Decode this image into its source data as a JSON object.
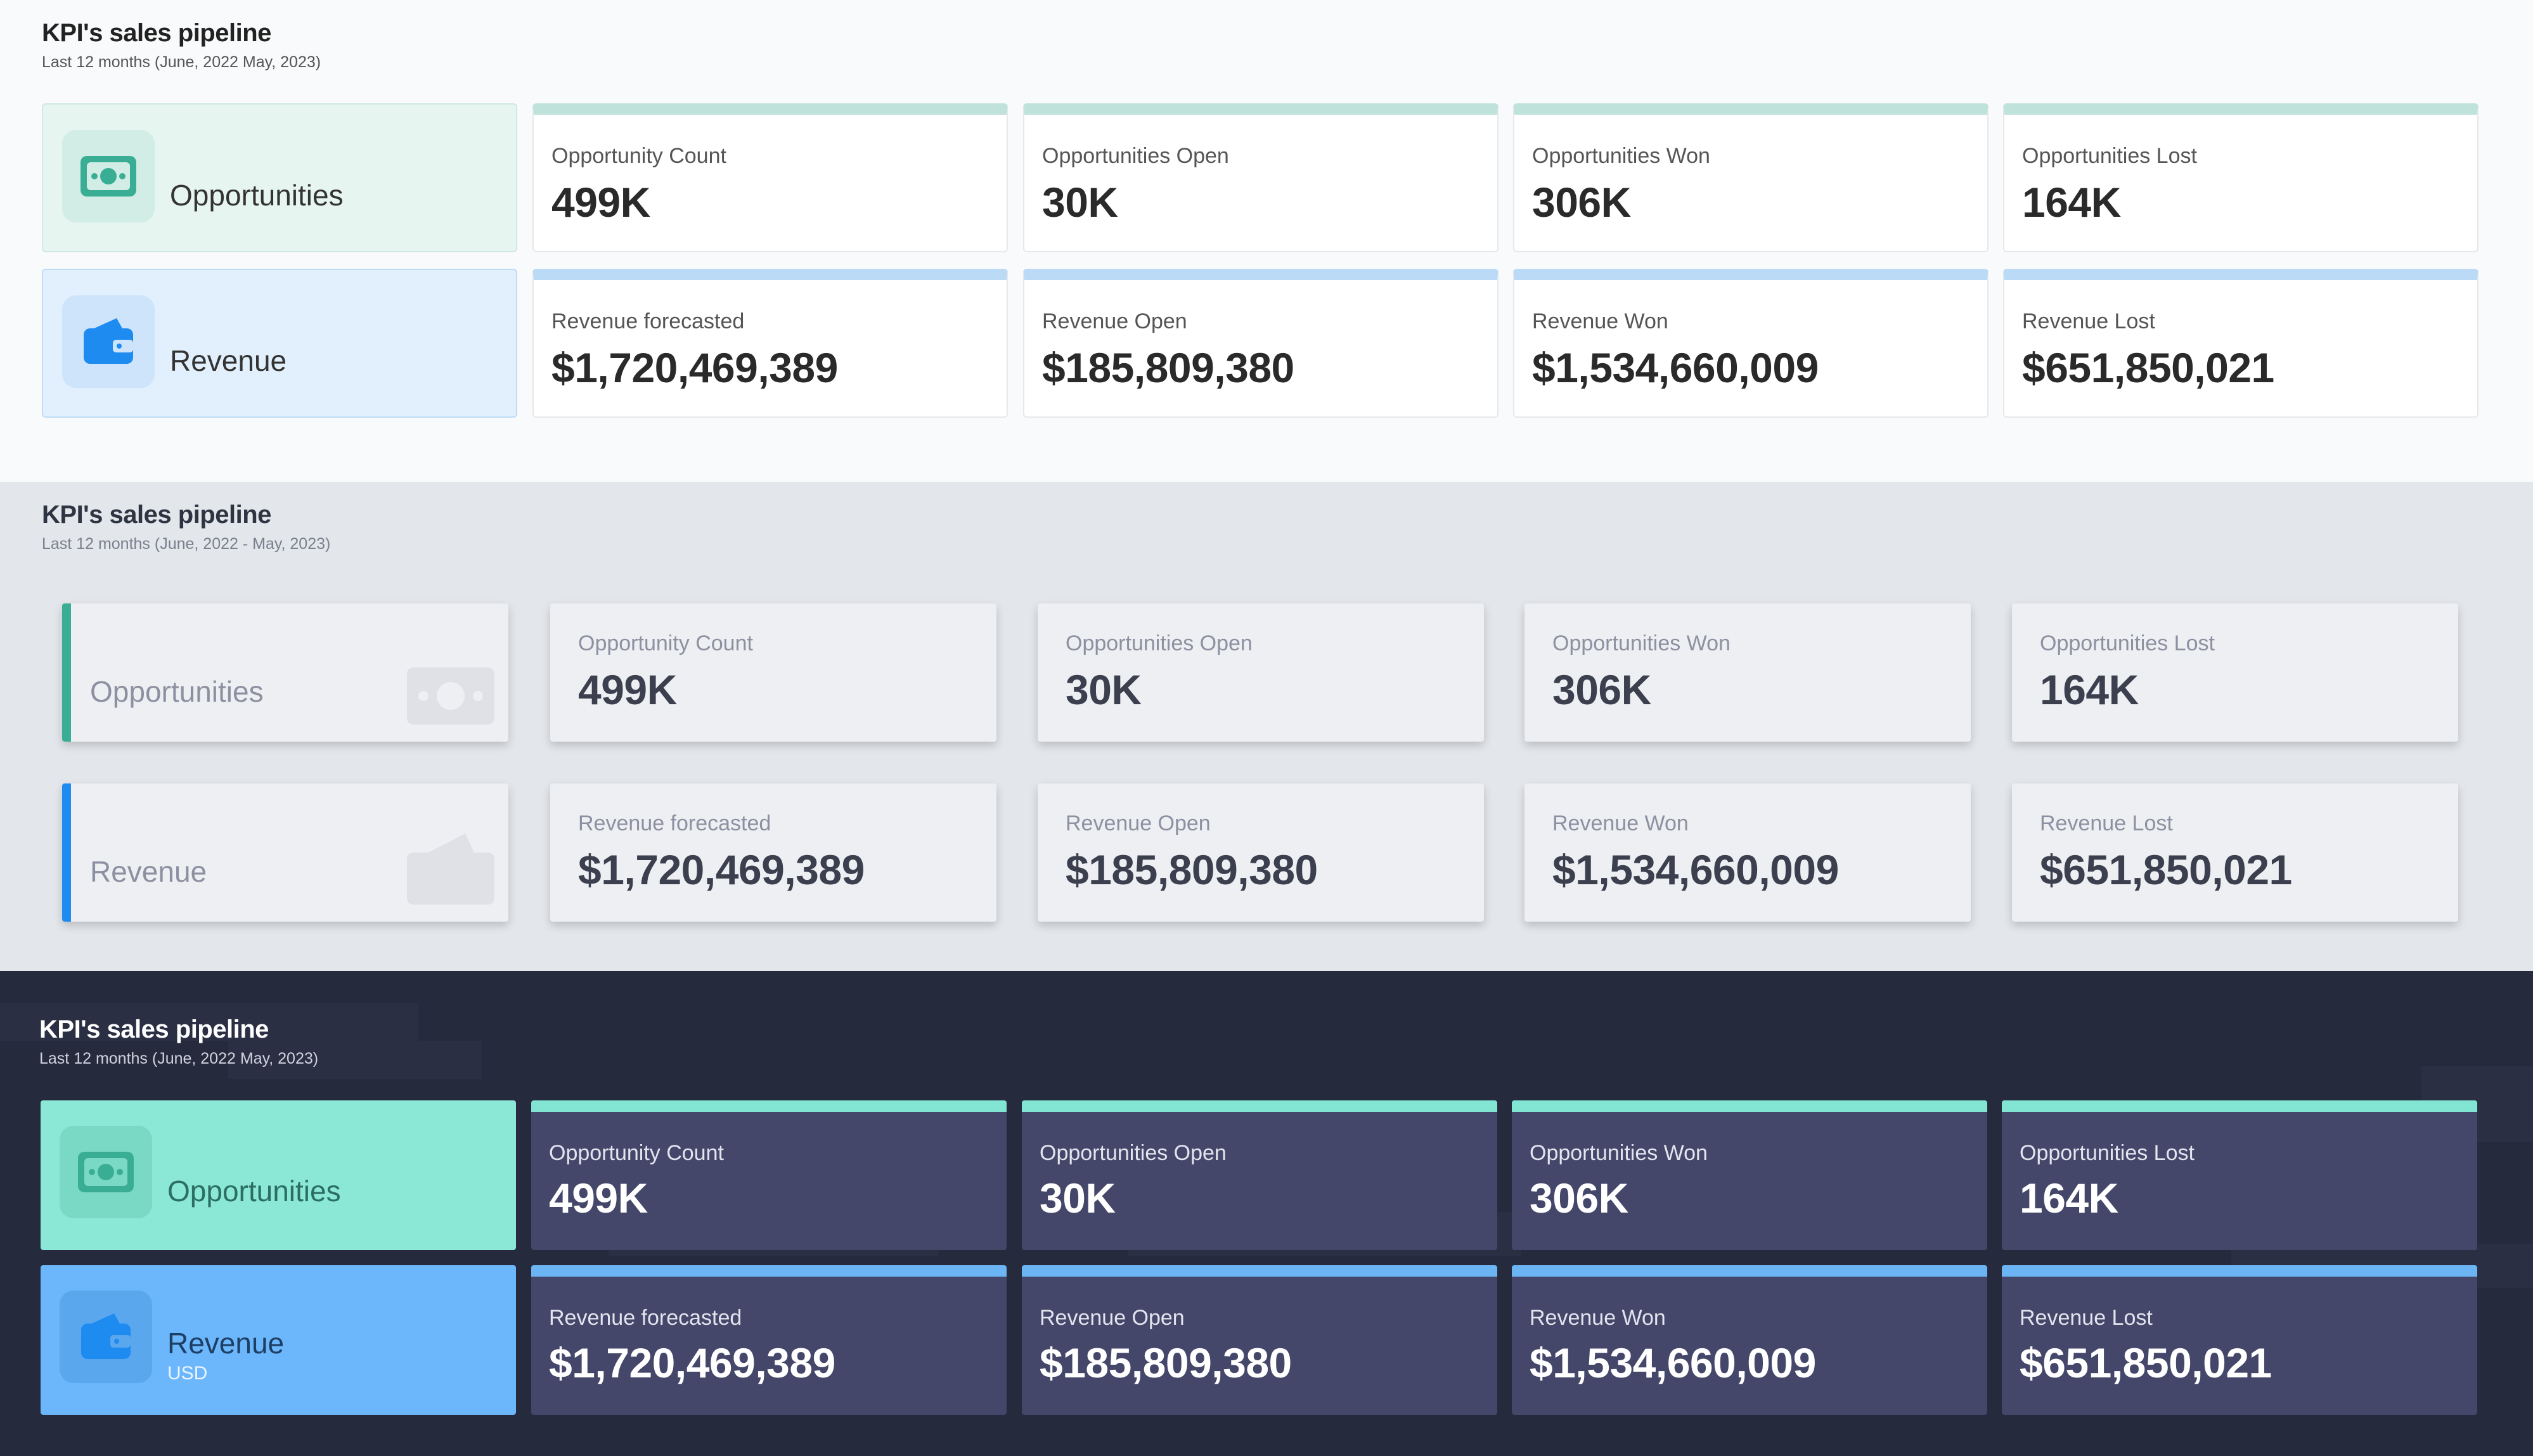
{
  "dashboards": [
    {
      "title": "KPI's sales pipeline",
      "subtitle": "Last 12 months (June, 2022    May, 2023)",
      "opportunities_label": "Opportunities",
      "revenue_label": "Revenue",
      "kpis": [
        {
          "label": "Opportunity Count",
          "value": "499K"
        },
        {
          "label": "Opportunities Open",
          "value": "30K"
        },
        {
          "label": "Opportunities Won",
          "value": "306K"
        },
        {
          "label": "Opportunities Lost",
          "value": "164K"
        },
        {
          "label": "Revenue forecasted",
          "value": "$1,720,469,389"
        },
        {
          "label": "Revenue Open",
          "value": "$185,809,380"
        },
        {
          "label": "Revenue Won",
          "value": "$1,534,660,009"
        },
        {
          "label": "Revenue Lost",
          "value": "$651,850,021"
        }
      ]
    },
    {
      "title": "KPI's sales pipeline",
      "subtitle": "Last 12 months (June, 2022 -  May, 2023)",
      "opportunities_label": "Opportunities",
      "revenue_label": "Revenue",
      "kpis": [
        {
          "label": "Opportunity Count",
          "value": "499K"
        },
        {
          "label": "Opportunities Open",
          "value": "30K"
        },
        {
          "label": "Opportunities Won",
          "value": "306K"
        },
        {
          "label": "Opportunities Lost",
          "value": "164K"
        },
        {
          "label": "Revenue forecasted",
          "value": "$1,720,469,389"
        },
        {
          "label": "Revenue Open",
          "value": "$185,809,380"
        },
        {
          "label": "Revenue Won",
          "value": "$1,534,660,009"
        },
        {
          "label": "Revenue Lost",
          "value": "$651,850,021"
        }
      ]
    },
    {
      "title": "KPI's sales pipeline",
      "subtitle": "Last 12 months (June, 2022    May, 2023)",
      "opportunities_label": "Opportunities",
      "revenue_label": "Revenue",
      "revenue_unit": "USD",
      "kpis": [
        {
          "label": "Opportunity Count",
          "value": "499K"
        },
        {
          "label": "Opportunities Open",
          "value": "30K"
        },
        {
          "label": "Opportunities Won",
          "value": "306K"
        },
        {
          "label": "Opportunities Lost",
          "value": "164K"
        },
        {
          "label": "Revenue forecasted",
          "value": "$1,720,469,389"
        },
        {
          "label": "Revenue Open",
          "value": "$185,809,380"
        },
        {
          "label": "Revenue Won",
          "value": "$1,534,660,009"
        },
        {
          "label": "Revenue Lost",
          "value": "$651,850,021"
        }
      ]
    }
  ],
  "icons": {
    "opportunities": "money-icon",
    "revenue": "wallet-icon"
  },
  "colors": {
    "green_accent": "#3aae95",
    "blue_accent": "#1e8bf0",
    "dark_background": "#252a3d",
    "dark_card": "#444769"
  }
}
